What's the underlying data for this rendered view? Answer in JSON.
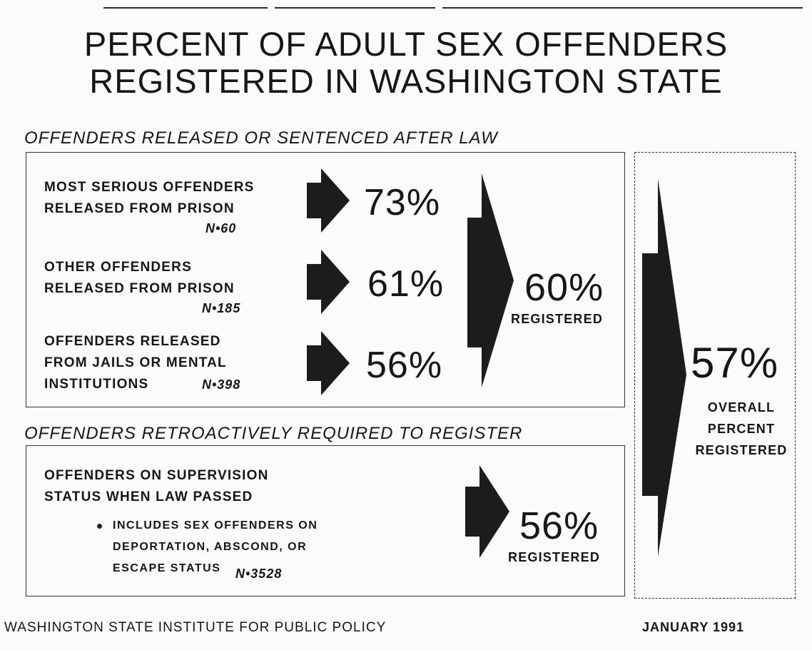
{
  "title": {
    "line1": "PERCENT OF ADULT SEX OFFENDERS",
    "line2": "REGISTERED IN WASHINGTON STATE"
  },
  "section_after_law": {
    "heading": "OFFENDERS RELEASED OR SENTENCED AFTER LAW",
    "rows": [
      {
        "label_lines": [
          "MOST SERIOUS OFFENDERS",
          "RELEASED FROM PRISON"
        ],
        "n": "N•60",
        "percent": "73%"
      },
      {
        "label_lines": [
          "OTHER OFFENDERS",
          "RELEASED FROM PRISON"
        ],
        "n": "N•185",
        "percent": "61%"
      },
      {
        "label_lines": [
          "OFFENDERS RELEASED",
          "FROM JAILS OR MENTAL",
          "INSTITUTIONS"
        ],
        "n": "N•398",
        "percent": "56%"
      }
    ],
    "subtotal_percent": "60%",
    "subtotal_label": "REGISTERED"
  },
  "section_retro": {
    "heading": "OFFENDERS RETROACTIVELY REQUIRED TO REGISTER",
    "label_lines": [
      "OFFENDERS ON SUPERVISION",
      "STATUS WHEN LAW PASSED"
    ],
    "note_lines": [
      "INCLUDES SEX OFFENDERS ON",
      "DEPORTATION, ABSCOND, OR",
      "ESCAPE STATUS"
    ],
    "n": "N•3528",
    "percent": "56%",
    "percent_label": "REGISTERED"
  },
  "overall": {
    "percent": "57%",
    "label_lines": [
      "OVERALL",
      "PERCENT",
      "REGISTERED"
    ]
  },
  "footer": {
    "source": "WASHINGTON STATE INSTITUTE FOR PUBLIC POLICY",
    "date": "JANUARY 1991"
  },
  "colors": {
    "arrow_fill": "#1c1c1c",
    "text": "#161616",
    "background": "#fbfbfb"
  }
}
